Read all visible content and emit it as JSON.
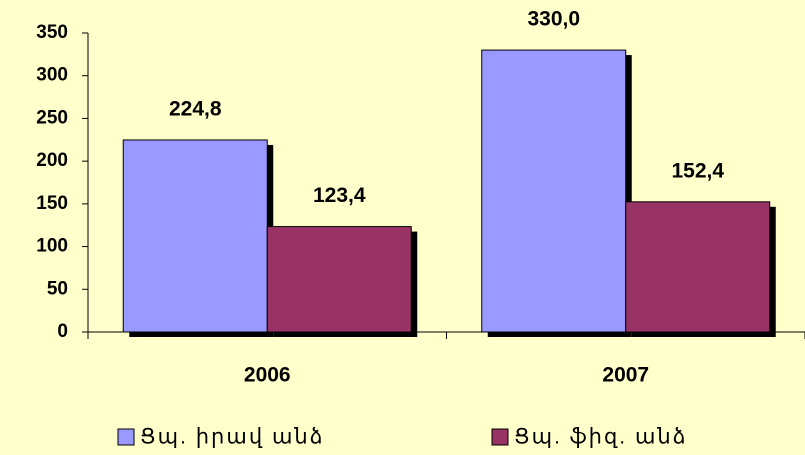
{
  "chart_data": {
    "type": "bar",
    "categories": [
      "2006",
      "2007"
    ],
    "series": [
      {
        "name": "Ցպ. իրավ անձ",
        "color": "#9999ff",
        "values": [
          224.8,
          330.0
        ],
        "value_labels": [
          "224,8",
          "330,0"
        ]
      },
      {
        "name": "Ցպ. ֆիզ. անձ",
        "color": "#993366",
        "values": [
          123.4,
          152.4
        ],
        "value_labels": [
          "123,4",
          "152,4"
        ]
      }
    ],
    "ylim": [
      0,
      350
    ],
    "yticks": [
      0,
      50,
      100,
      150,
      200,
      250,
      300,
      350
    ],
    "grid": false,
    "legend": "bottom"
  }
}
